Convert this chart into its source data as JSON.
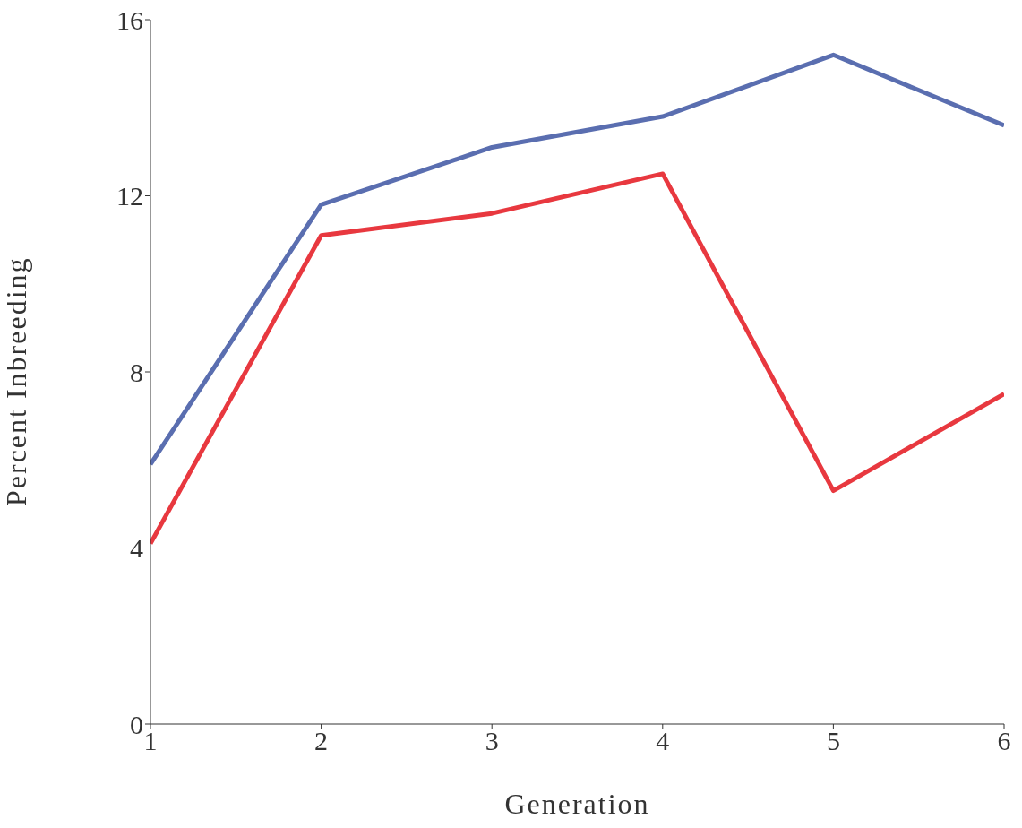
{
  "chart_data": {
    "type": "line",
    "xlabel": "Generation",
    "ylabel": "Percent Inbreeding",
    "x": [
      1,
      2,
      3,
      4,
      5,
      6
    ],
    "series": [
      {
        "color": "#5a6eb0",
        "values": [
          5.9,
          11.8,
          13.1,
          13.8,
          15.2,
          13.6
        ]
      },
      {
        "color": "#e8383f",
        "values": [
          4.1,
          11.1,
          11.6,
          12.5,
          5.3,
          7.5
        ]
      }
    ],
    "xlim": [
      1,
      6
    ],
    "xticks": [
      1,
      2,
      3,
      4,
      5,
      6
    ],
    "ylim": [
      0,
      16
    ],
    "yticks": [
      0,
      4,
      8,
      12,
      16
    ],
    "grid": false,
    "legend": false,
    "marker": "none",
    "line_style": "solid"
  }
}
